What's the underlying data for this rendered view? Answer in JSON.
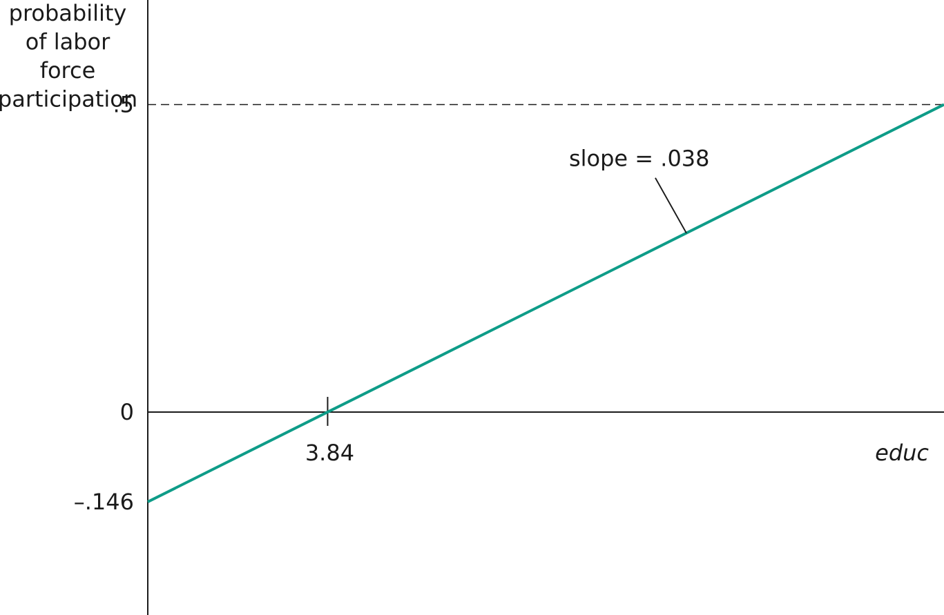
{
  "chart_data": {
    "type": "line",
    "ylabel_lines": [
      "probability",
      "of labor",
      "force",
      "participation"
    ],
    "xlabel": "educ",
    "y_tick_labels": [
      {
        "value": 0.5,
        "label": ".5"
      },
      {
        "value": 0,
        "label": "0"
      },
      {
        "value": -0.146,
        "label": "–.146"
      }
    ],
    "x_tick_labels": [
      {
        "value": 3.84,
        "label": "3.84"
      }
    ],
    "series": [
      {
        "x": [
          0,
          3.84,
          17.0
        ],
        "y": [
          -0.146,
          0,
          0.5
        ]
      }
    ],
    "reference_line": {
      "y": 0.5,
      "style": "dashed"
    },
    "annotation": {
      "text": "slope = .038",
      "x": 11.5,
      "y": 0.291
    },
    "xlim": [
      0,
      17.0
    ],
    "ylim": [
      -0.33,
      0.67
    ],
    "grid": false,
    "colors": {
      "line": "#0e9c88",
      "axis": "#1a1a1a"
    }
  }
}
